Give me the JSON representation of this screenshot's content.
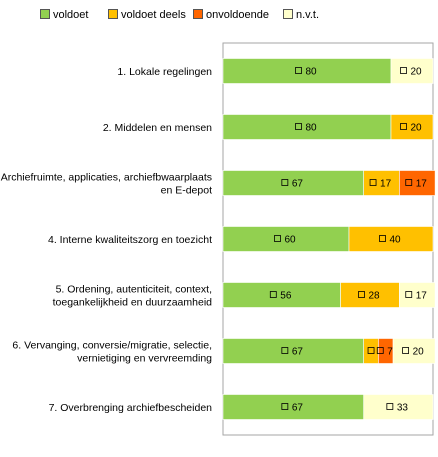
{
  "chart_data": {
    "type": "bar",
    "orientation": "horizontal",
    "stacked": "percent",
    "categories": [
      "1. Lokale regelingen",
      "2. Middelen en mensen",
      "Archiefruimte, applicaties, archiefbwaarplaats en E-depot",
      "4. Interne kwaliteitszorg en toezicht",
      "5. Ordening, autenticiteit, context, toegankelijkheid en duurzaamheid",
      "6. Vervanging, conversie/migratie, selectie, vernietiging en vervreemding",
      "7. Overbrenging archiefbescheiden"
    ],
    "category_lines": [
      [
        "1. Lokale regelingen"
      ],
      [
        "2. Middelen en mensen"
      ],
      [
        "Archiefruimte, applicaties, archiefbwaarplaats",
        "en E-depot"
      ],
      [
        "4. Interne kwaliteitszorg en toezicht"
      ],
      [
        "5. Ordening, autenticiteit, context,",
        "toegankelijkheid en duurzaamheid"
      ],
      [
        "6. Vervanging, conversie/migratie, selectie,",
        "vernietiging en vervreemding"
      ],
      [
        "7. Overbrenging archiefbescheiden"
      ]
    ],
    "series": [
      {
        "name": "voldoet",
        "color": "#92d050",
        "values": [
          80,
          80,
          67,
          60,
          56,
          67,
          67
        ]
      },
      {
        "name": "voldoet deels",
        "color": "#ffc000",
        "values": [
          0,
          20,
          17,
          40,
          28,
          7,
          0
        ]
      },
      {
        "name": "onvoldoende",
        "color": "#ff6600",
        "values": [
          0,
          0,
          17,
          0,
          0,
          7,
          0
        ]
      },
      {
        "name": "n.v.t.",
        "color": "#ffffcc",
        "values": [
          20,
          0,
          0,
          0,
          17,
          20,
          33
        ]
      }
    ],
    "data_labels": [
      [
        "80",
        "",
        "",
        "20"
      ],
      [
        "80",
        "20",
        "",
        ""
      ],
      [
        "67",
        "17",
        "17",
        ""
      ],
      [
        "60",
        "40",
        "",
        ""
      ],
      [
        "56",
        "28",
        "",
        "17"
      ],
      [
        "67",
        "",
        "7",
        "20"
      ],
      [
        "67",
        "",
        "",
        "33"
      ]
    ],
    "xlim": [
      0,
      100
    ],
    "grid": false,
    "legend_position": "top"
  }
}
